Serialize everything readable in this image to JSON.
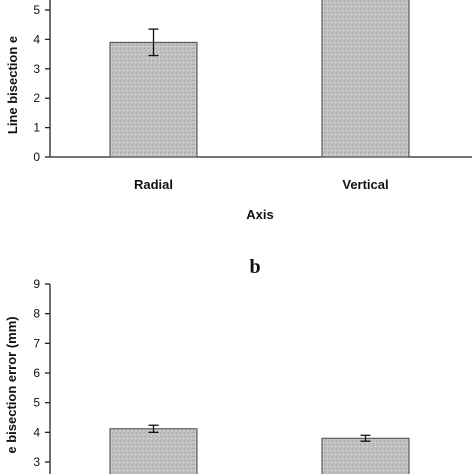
{
  "chart_data": [
    {
      "type": "bar",
      "panel": "",
      "categories": [
        "Radial",
        "Vertical"
      ],
      "values": [
        3.9,
        5.4
      ],
      "error": [
        0.45,
        0.0
      ],
      "xlabel": "Axis",
      "ylabel": "Line bisection e",
      "ylim": [
        0,
        5
      ],
      "yticks": [
        0,
        1,
        2,
        3,
        4,
        5
      ],
      "bar_color": "#c4c4c4"
    },
    {
      "type": "bar",
      "panel": "b",
      "categories": [
        "",
        ""
      ],
      "values": [
        4.12,
        3.8
      ],
      "error": [
        0.12,
        0.1
      ],
      "xlabel": "",
      "ylabel": "e bisection error (mm)",
      "ylim": [
        3,
        9
      ],
      "yticks": [
        3,
        4,
        5,
        6,
        7,
        8,
        9
      ],
      "bar_color": "#c4c4c4"
    }
  ]
}
